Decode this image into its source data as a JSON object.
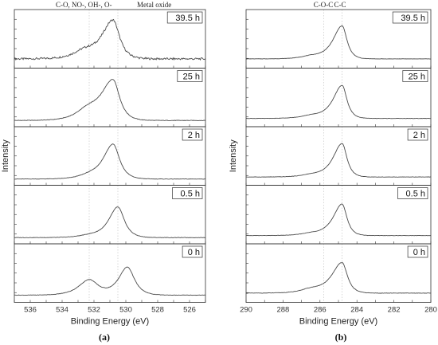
{
  "chart_data": [
    {
      "type": "line",
      "caption": "(a)",
      "xlabel": "Binding Energy (eV)",
      "ylabel": "Intensity",
      "xlim": [
        537,
        525
      ],
      "xticks": [
        536,
        534,
        532,
        530,
        528,
        526
      ],
      "annotations": [
        {
          "text": "C-O, NO-, OH-, O-",
          "x": 532.3
        },
        {
          "text": "Metal oxide",
          "x": 530.5
        }
      ],
      "panels": [
        {
          "label": "39.5 h",
          "baseline": 0.12,
          "noise": 0.02,
          "peaks": [
            {
              "center": 530.8,
              "amp": 0.75,
              "width": 0.55,
              "tail": 1.7
            },
            {
              "center": 532.6,
              "amp": 0.14,
              "width": 1.0,
              "tail": 1.0
            }
          ]
        },
        {
          "label": "25 h",
          "baseline": 0.06,
          "noise": 0.005,
          "peaks": [
            {
              "center": 530.8,
              "amp": 0.78,
              "width": 0.55,
              "tail": 1.8
            },
            {
              "center": 532.4,
              "amp": 0.18,
              "width": 1.0,
              "tail": 1.0
            }
          ]
        },
        {
          "label": "2 h",
          "baseline": 0.06,
          "noise": 0.004,
          "peaks": [
            {
              "center": 530.8,
              "amp": 0.68,
              "width": 0.55,
              "tail": 1.5
            },
            {
              "center": 532.3,
              "amp": 0.06,
              "width": 1.0,
              "tail": 1.0
            }
          ]
        },
        {
          "label": "0.5 h",
          "baseline": 0.06,
          "noise": 0.004,
          "peaks": [
            {
              "center": 530.5,
              "amp": 0.6,
              "width": 0.55,
              "tail": 1.4
            },
            {
              "center": 532.3,
              "amp": 0.04,
              "width": 1.0,
              "tail": 1.0
            }
          ]
        },
        {
          "label": "0 h",
          "baseline": 0.08,
          "noise": 0.004,
          "peaks": [
            {
              "center": 529.9,
              "amp": 0.55,
              "width": 0.6,
              "tail": 1.25
            },
            {
              "center": 532.3,
              "amp": 0.3,
              "width": 0.75,
              "tail": 1.2
            }
          ]
        }
      ]
    },
    {
      "type": "line",
      "caption": "(b)",
      "xlabel": "Binding Energy (eV)",
      "ylabel": "Intensity",
      "xlim": [
        290,
        280
      ],
      "xticks": [
        290,
        288,
        286,
        284,
        282,
        280
      ],
      "annotations": [
        {
          "text": "C-O-C",
          "x": 285.8
        },
        {
          "text": "C-C",
          "x": 284.8
        }
      ],
      "panels": [
        {
          "label": "39.5 h",
          "baseline": 0.12,
          "noise": 0.003,
          "peaks": [
            {
              "center": 284.8,
              "amp": 0.65,
              "width": 0.35,
              "tail": 1.9
            },
            {
              "center": 286.5,
              "amp": 0.05,
              "width": 0.8,
              "tail": 1.0
            }
          ]
        },
        {
          "label": "25 h",
          "baseline": 0.1,
          "noise": 0.003,
          "peaks": [
            {
              "center": 284.8,
              "amp": 0.65,
              "width": 0.35,
              "tail": 1.9
            },
            {
              "center": 286.5,
              "amp": 0.05,
              "width": 0.8,
              "tail": 1.0
            }
          ]
        },
        {
          "label": "2 h",
          "baseline": 0.1,
          "noise": 0.003,
          "peaks": [
            {
              "center": 284.8,
              "amp": 0.66,
              "width": 0.35,
              "tail": 1.9
            },
            {
              "center": 286.5,
              "amp": 0.04,
              "width": 0.8,
              "tail": 1.0
            }
          ]
        },
        {
          "label": "0.5 h",
          "baseline": 0.1,
          "noise": 0.003,
          "peaks": [
            {
              "center": 284.8,
              "amp": 0.62,
              "width": 0.35,
              "tail": 1.9
            },
            {
              "center": 286.5,
              "amp": 0.04,
              "width": 0.8,
              "tail": 1.0
            }
          ]
        },
        {
          "label": "0 h",
          "baseline": 0.12,
          "noise": 0.004,
          "peaks": [
            {
              "center": 284.8,
              "amp": 0.6,
              "width": 0.38,
              "tail": 2.0
            },
            {
              "center": 286.5,
              "amp": 0.07,
              "width": 0.8,
              "tail": 1.0
            }
          ]
        }
      ]
    }
  ],
  "colors": {
    "line": "#4a4a4a",
    "frame": "#333333",
    "guide": "#bdbdbd",
    "background": "#ffffff"
  }
}
